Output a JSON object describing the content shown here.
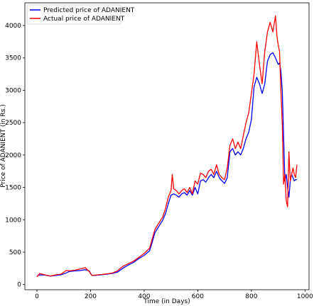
{
  "chart_data": {
    "type": "line",
    "title": "",
    "xlabel": "Time (in Days)",
    "ylabel": "Price of ADANIENT (in Rs.)",
    "xlim": [
      -45,
      1015
    ],
    "ylim": [
      -80,
      4350
    ],
    "xticks": [
      0,
      200,
      400,
      600,
      800,
      1000
    ],
    "yticks": [
      0,
      500,
      1000,
      1500,
      2000,
      2500,
      3000,
      3500,
      4000
    ],
    "grid": false,
    "legend": "top-left",
    "colors": {
      "predicted": "#0000ff",
      "actual": "#ff0000"
    },
    "series": [
      {
        "name": "Predicted price of ADANIENT",
        "color": "#0000ff",
        "x": [
          0,
          10,
          30,
          50,
          70,
          90,
          110,
          120,
          140,
          160,
          180,
          195,
          205,
          215,
          240,
          260,
          280,
          300,
          320,
          340,
          360,
          380,
          400,
          420,
          430,
          440,
          455,
          470,
          480,
          490,
          500,
          510,
          520,
          530,
          540,
          550,
          560,
          570,
          580,
          590,
          600,
          610,
          620,
          630,
          640,
          650,
          660,
          670,
          680,
          690,
          700,
          710,
          720,
          730,
          740,
          750,
          760,
          770,
          780,
          790,
          800,
          810,
          820,
          830,
          840,
          850,
          860,
          870,
          880,
          890,
          900,
          905,
          910,
          915,
          920,
          925,
          930,
          935,
          940,
          945,
          950,
          955,
          960,
          965,
          970
        ],
        "y": [
          130,
          150,
          145,
          130,
          140,
          150,
          180,
          200,
          210,
          215,
          230,
          210,
          140,
          140,
          150,
          160,
          170,
          190,
          250,
          300,
          340,
          400,
          450,
          520,
          650,
          800,
          900,
          1000,
          1100,
          1250,
          1380,
          1400,
          1380,
          1350,
          1400,
          1420,
          1380,
          1450,
          1380,
          1500,
          1400,
          1600,
          1620,
          1580,
          1650,
          1700,
          1650,
          1750,
          1650,
          1600,
          1560,
          1650,
          2050,
          2100,
          2000,
          2050,
          2000,
          2100,
          2250,
          2350,
          2550,
          3050,
          3200,
          3100,
          2950,
          3100,
          3450,
          3550,
          3580,
          3500,
          3400,
          3420,
          3300,
          3000,
          2300,
          1600,
          1700,
          1500,
          1350,
          1600,
          1700,
          1650,
          1600,
          1620,
          1620
        ]
      },
      {
        "name": "Actual price of ADANIENT",
        "color": "#ff0000",
        "x": [
          0,
          10,
          30,
          50,
          70,
          90,
          110,
          120,
          140,
          160,
          180,
          195,
          205,
          215,
          240,
          260,
          280,
          300,
          320,
          340,
          360,
          380,
          400,
          420,
          430,
          440,
          455,
          470,
          480,
          490,
          500,
          505,
          510,
          520,
          530,
          540,
          550,
          560,
          570,
          580,
          590,
          600,
          610,
          620,
          630,
          640,
          650,
          660,
          670,
          680,
          690,
          700,
          710,
          720,
          730,
          740,
          750,
          760,
          770,
          780,
          790,
          800,
          810,
          820,
          830,
          840,
          850,
          860,
          870,
          880,
          890,
          895,
          900,
          905,
          910,
          915,
          920,
          925,
          930,
          935,
          940,
          945,
          950,
          955,
          960,
          965,
          970
        ],
        "y": [
          120,
          170,
          150,
          130,
          150,
          160,
          220,
          210,
          220,
          240,
          260,
          200,
          140,
          145,
          155,
          165,
          175,
          210,
          280,
          320,
          360,
          420,
          480,
          560,
          700,
          850,
          950,
          1050,
          1180,
          1350,
          1450,
          1700,
          1480,
          1450,
          1400,
          1450,
          1480,
          1420,
          1500,
          1400,
          1600,
          1550,
          1720,
          1700,
          1650,
          1750,
          1780,
          1700,
          1850,
          1700,
          1650,
          1620,
          1800,
          2150,
          2250,
          2100,
          2200,
          2100,
          2300,
          2500,
          2650,
          2950,
          3250,
          3750,
          3400,
          3100,
          3600,
          3900,
          4050,
          3900,
          4150,
          3850,
          3700,
          3600,
          3000,
          2500,
          1550,
          1700,
          1300,
          1200,
          2050,
          1600,
          1700,
          1800,
          1700,
          1650,
          1850
        ]
      }
    ]
  }
}
